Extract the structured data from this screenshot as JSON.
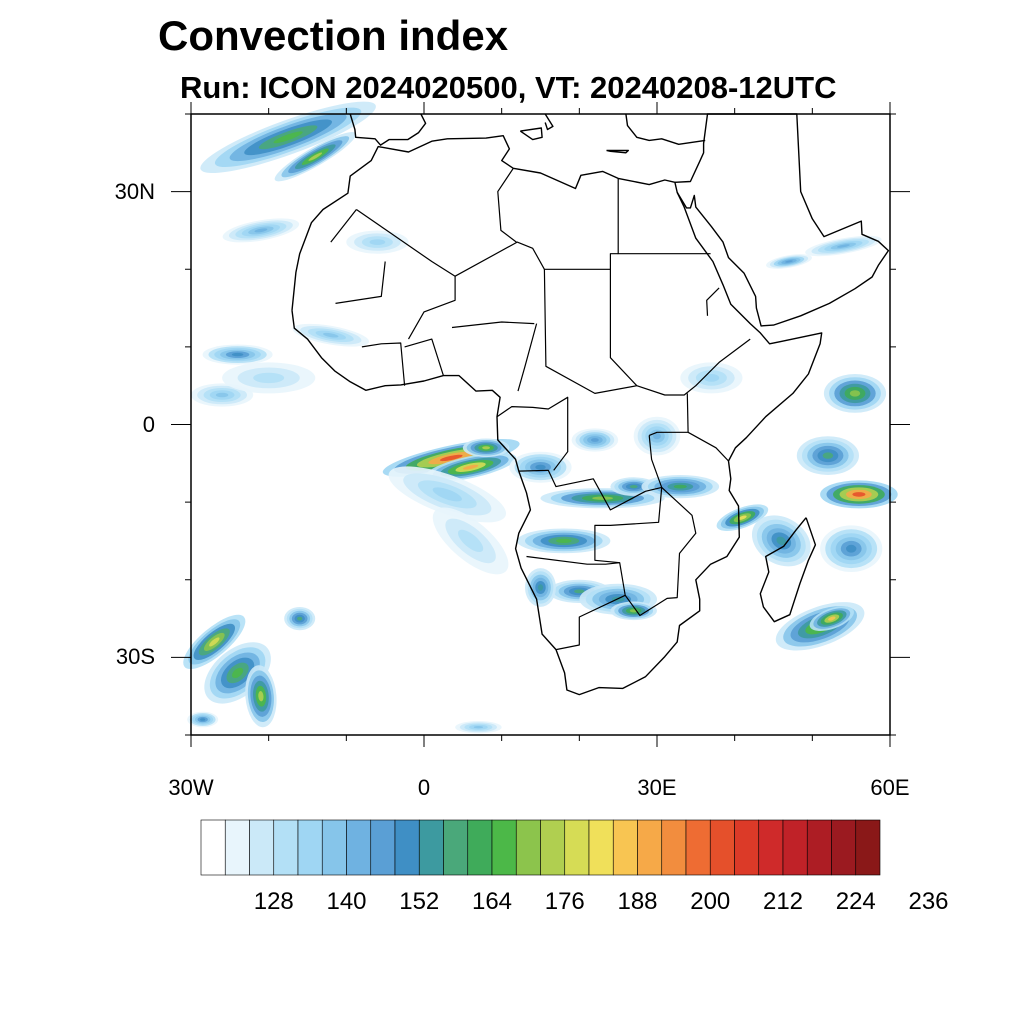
{
  "title": "Convection index",
  "subtitle": "Run: ICON 2024020500,  VT: 20240208-12UTC",
  "map": {
    "lon_range": [
      -30,
      60
    ],
    "lat_range": [
      -40,
      40
    ],
    "lat_ticks": [
      {
        "value": 30,
        "label": "30N"
      },
      {
        "value": 0,
        "label": "0"
      },
      {
        "value": -30,
        "label": "30S"
      }
    ],
    "lon_ticks": [
      {
        "value": -30,
        "label": "30W"
      },
      {
        "value": 0,
        "label": "0"
      },
      {
        "value": 30,
        "label": "30E"
      },
      {
        "value": 60,
        "label": "60E"
      }
    ]
  },
  "colorbar": {
    "colors": [
      "#ffffff",
      "#e8f5fc",
      "#cbe9f8",
      "#b3e0f6",
      "#9fd6f3",
      "#86c5ea",
      "#6fb2e1",
      "#5a9fd5",
      "#3f8fc5",
      "#3d9aa0",
      "#4aa87a",
      "#3fab5a",
      "#4cb848",
      "#8cc44c",
      "#b0cf50",
      "#d6dc55",
      "#f0e05a",
      "#f8c552",
      "#f6a948",
      "#f28d3e",
      "#ee6c33",
      "#e5502b",
      "#dc3a28",
      "#cf2a2a",
      "#c02228",
      "#ad1d24",
      "#9b1a20",
      "#8a1818"
    ],
    "labels": [
      "128",
      "140",
      "152",
      "164",
      "176",
      "188",
      "200",
      "212",
      "224",
      "236"
    ]
  }
}
